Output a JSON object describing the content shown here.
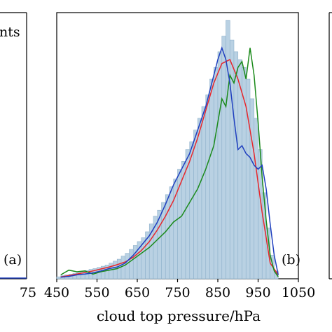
{
  "chart_data": [
    {
      "type": "bar",
      "panel": "left (partially visible)",
      "legend_fragment": "nts",
      "panel_label": "(a)",
      "x_tick_fragment": "75",
      "series": [
        {
          "name": "",
          "color": "#1f3fbf",
          "x": [
            0,
            1
          ],
          "y": [
            0.004,
            0.004
          ]
        }
      ]
    },
    {
      "type": "bar",
      "panel": "middle",
      "panel_label": "(b)",
      "xlabel": "cloud top pressure/hPa",
      "xlim": [
        450,
        1050
      ],
      "ylim": [
        0,
        0.068
      ],
      "x_ticks": [
        "450",
        "550",
        "650",
        "750",
        "850",
        "950",
        "1050"
      ],
      "histogram": {
        "bin_width": 10,
        "bin_starts": [
          450,
          460,
          470,
          480,
          490,
          500,
          510,
          520,
          530,
          540,
          550,
          560,
          570,
          580,
          590,
          600,
          610,
          620,
          630,
          640,
          650,
          660,
          670,
          680,
          690,
          700,
          710,
          720,
          730,
          740,
          750,
          760,
          770,
          780,
          790,
          800,
          810,
          820,
          830,
          840,
          850,
          860,
          870,
          880,
          890,
          900,
          910,
          920,
          930,
          940,
          950,
          960,
          970,
          980,
          990
        ],
        "heights": [
          0.0005,
          0.0008,
          0.001,
          0.0012,
          0.0014,
          0.0017,
          0.0019,
          0.0021,
          0.0024,
          0.0026,
          0.0029,
          0.0032,
          0.0035,
          0.004,
          0.0045,
          0.005,
          0.0058,
          0.0065,
          0.0075,
          0.0085,
          0.0095,
          0.0105,
          0.012,
          0.014,
          0.016,
          0.0175,
          0.0195,
          0.0215,
          0.0235,
          0.0255,
          0.028,
          0.03,
          0.033,
          0.035,
          0.038,
          0.041,
          0.044,
          0.047,
          0.051,
          0.054,
          0.058,
          0.062,
          0.066,
          0.061,
          0.058,
          0.056,
          0.054,
          0.051,
          0.046,
          0.041,
          0.033,
          0.022,
          0.013,
          0.006,
          0.002
        ],
        "color": "#b9d1e3"
      },
      "series": [
        {
          "name": "",
          "color": "#e8262b",
          "x": [
            460,
            480,
            500,
            520,
            540,
            560,
            580,
            600,
            620,
            640,
            660,
            680,
            700,
            720,
            740,
            760,
            780,
            800,
            820,
            840,
            860,
            880,
            900,
            920,
            940,
            960,
            980,
            1000
          ],
          "y": [
            0.0005,
            0.0008,
            0.0012,
            0.0016,
            0.002,
            0.0025,
            0.003,
            0.0036,
            0.0043,
            0.0055,
            0.0072,
            0.0095,
            0.0125,
            0.016,
            0.02,
            0.025,
            0.03,
            0.036,
            0.043,
            0.05,
            0.055,
            0.056,
            0.051,
            0.044,
            0.032,
            0.017,
            0.004,
            0.001
          ]
        },
        {
          "name": "",
          "color": "#1a8a1a",
          "x": [
            460,
            480,
            500,
            520,
            540,
            560,
            580,
            600,
            620,
            640,
            660,
            680,
            700,
            720,
            740,
            760,
            780,
            800,
            820,
            840,
            860,
            870,
            880,
            890,
            900,
            910,
            920,
            930,
            940,
            950,
            960,
            970,
            980,
            990,
            1000
          ],
          "y": [
            0.001,
            0.0022,
            0.0018,
            0.002,
            0.0012,
            0.0018,
            0.0022,
            0.0026,
            0.0035,
            0.005,
            0.0065,
            0.008,
            0.01,
            0.012,
            0.0145,
            0.016,
            0.0195,
            0.023,
            0.028,
            0.034,
            0.046,
            0.044,
            0.052,
            0.05,
            0.054,
            0.0555,
            0.051,
            0.059,
            0.052,
            0.04,
            0.026,
            0.015,
            0.006,
            0.002,
            0.0005
          ]
        },
        {
          "name": "",
          "color": "#1f3fbf",
          "x": [
            460,
            480,
            500,
            520,
            540,
            560,
            580,
            600,
            620,
            640,
            660,
            680,
            700,
            720,
            740,
            760,
            780,
            800,
            820,
            840,
            850,
            860,
            870,
            880,
            890,
            900,
            910,
            920,
            930,
            940,
            950,
            960,
            970,
            980,
            990,
            1000
          ],
          "y": [
            0.0004,
            0.0006,
            0.001,
            0.0012,
            0.0015,
            0.002,
            0.0026,
            0.003,
            0.004,
            0.006,
            0.0085,
            0.011,
            0.0145,
            0.019,
            0.024,
            0.028,
            0.032,
            0.038,
            0.044,
            0.052,
            0.056,
            0.059,
            0.056,
            0.05,
            0.041,
            0.033,
            0.034,
            0.032,
            0.031,
            0.029,
            0.028,
            0.029,
            0.023,
            0.014,
            0.006,
            0.001
          ]
        }
      ]
    }
  ]
}
